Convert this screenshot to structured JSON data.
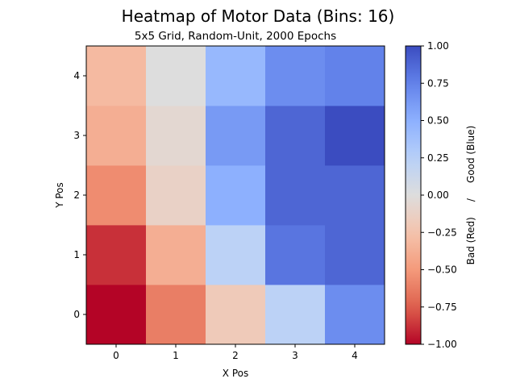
{
  "chart_data": {
    "type": "heatmap",
    "title": "Heatmap of Motor Data (Bins: 16)",
    "subtitle": "5x5 Grid, Random-Unit, 2000 Epochs",
    "xlabel": "X Pos",
    "ylabel": "Y Pos",
    "x": [
      0,
      1,
      2,
      3,
      4
    ],
    "y": [
      0,
      1,
      2,
      3,
      4
    ],
    "x_tick_labels": [
      "0",
      "1",
      "2",
      "3",
      "4"
    ],
    "y_tick_labels": [
      "0",
      "1",
      "2",
      "3",
      "4"
    ],
    "values": [
      [
        -1.0,
        -0.62,
        -0.19,
        0.22,
        0.69
      ],
      [
        -0.88,
        -0.38,
        0.22,
        0.81,
        0.88
      ],
      [
        -0.56,
        -0.12,
        0.5,
        0.88,
        0.88
      ],
      [
        -0.38,
        -0.06,
        0.62,
        0.88,
        1.0
      ],
      [
        -0.31,
        0.0,
        0.44,
        0.69,
        0.75
      ]
    ],
    "colormap": "coolwarm",
    "clim": [
      -1,
      1
    ],
    "colorbar": {
      "label": "Bad (Red)     /     Good (Blue)",
      "ticks": [
        -1.0,
        -0.75,
        -0.5,
        -0.25,
        0.0,
        0.25,
        0.5,
        0.75,
        1.0
      ],
      "tick_labels": [
        "−1.00",
        "−0.75",
        "−0.50",
        "−0.25",
        "0.00",
        "0.25",
        "0.50",
        "0.75",
        "1.00"
      ]
    },
    "grid": false
  }
}
